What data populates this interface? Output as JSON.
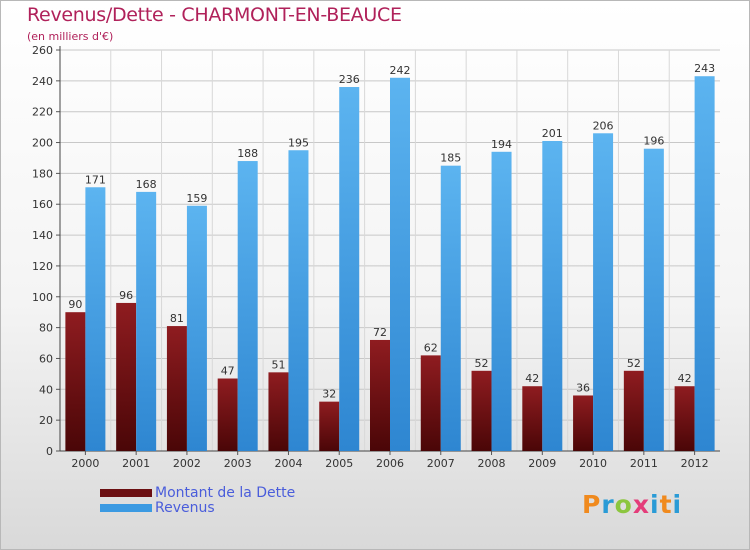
{
  "chart_data": {
    "type": "bar",
    "title": "Revenus/Dette - CHARMONT-EN-BEAUCE",
    "subtitle": "(en milliers d'€)",
    "categories": [
      "2000",
      "2001",
      "2002",
      "2003",
      "2004",
      "2005",
      "2006",
      "2007",
      "2008",
      "2009",
      "2010",
      "2011",
      "2012"
    ],
    "series": [
      {
        "name": "Montant de la Dette",
        "color": "#6b0f12",
        "values": [
          90,
          96,
          81,
          47,
          51,
          32,
          72,
          62,
          52,
          42,
          36,
          52,
          42
        ]
      },
      {
        "name": "Revenus",
        "color": "#3b9ae2",
        "values": [
          171,
          168,
          159,
          188,
          195,
          236,
          242,
          185,
          194,
          201,
          206,
          196,
          243
        ]
      }
    ],
    "yticks": [
      "0",
      "20",
      "40",
      "60",
      "80",
      "100",
      "120",
      "140",
      "160",
      "180",
      "200",
      "220",
      "240",
      "260"
    ],
    "ylim": [
      0,
      260
    ],
    "grid": true,
    "legend": "bottom-left"
  },
  "brand": {
    "letters": [
      "P",
      "r",
      "o",
      "x",
      "i",
      "t",
      "i"
    ]
  }
}
